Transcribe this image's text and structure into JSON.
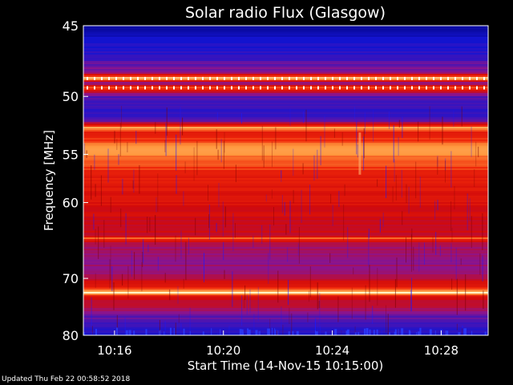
{
  "chart_data": {
    "type": "heatmap",
    "title": "Solar radio Flux (Glasgow)",
    "xlabel": "Start Time (14-Nov-15 10:15:00)",
    "ylabel": "Frequency [MHz]",
    "x_ticks": [
      "10:16",
      "10:20",
      "10:24",
      "10:28"
    ],
    "y_ticks": [
      45,
      50,
      55,
      60,
      70,
      80
    ],
    "y_axis_scale": "reciprocal",
    "ylim": [
      45,
      80
    ],
    "colormap": "blue-red-white",
    "intensity_profile": [
      {
        "freq_mhz": 45.0,
        "level": 0.1
      },
      {
        "freq_mhz": 46.0,
        "level": 0.25
      },
      {
        "freq_mhz": 47.0,
        "level": 0.3
      },
      {
        "freq_mhz": 48.2,
        "level": 0.45
      },
      {
        "freq_mhz": 48.6,
        "level": 1.0
      },
      {
        "freq_mhz": 49.0,
        "level": 0.4
      },
      {
        "freq_mhz": 49.3,
        "level": 0.85
      },
      {
        "freq_mhz": 50.0,
        "level": 0.35
      },
      {
        "freq_mhz": 51.0,
        "level": 0.3
      },
      {
        "freq_mhz": 52.0,
        "level": 0.35
      },
      {
        "freq_mhz": 52.6,
        "level": 0.95
      },
      {
        "freq_mhz": 53.0,
        "level": 0.7
      },
      {
        "freq_mhz": 54.0,
        "level": 0.85
      },
      {
        "freq_mhz": 55.0,
        "level": 0.9
      },
      {
        "freq_mhz": 56.0,
        "level": 0.82
      },
      {
        "freq_mhz": 57.0,
        "level": 0.72
      },
      {
        "freq_mhz": 58.0,
        "level": 0.7
      },
      {
        "freq_mhz": 60.0,
        "level": 0.66
      },
      {
        "freq_mhz": 62.0,
        "level": 0.62
      },
      {
        "freq_mhz": 64.0,
        "level": 0.6
      },
      {
        "freq_mhz": 64.3,
        "level": 0.85
      },
      {
        "freq_mhz": 65.0,
        "level": 0.55
      },
      {
        "freq_mhz": 67.0,
        "level": 0.45
      },
      {
        "freq_mhz": 69.0,
        "level": 0.5
      },
      {
        "freq_mhz": 70.0,
        "level": 0.55
      },
      {
        "freq_mhz": 71.5,
        "level": 0.75
      },
      {
        "freq_mhz": 72.3,
        "level": 1.0
      },
      {
        "freq_mhz": 73.0,
        "level": 0.6
      },
      {
        "freq_mhz": 74.5,
        "level": 0.55
      },
      {
        "freq_mhz": 76.0,
        "level": 0.4
      },
      {
        "freq_mhz": 78.0,
        "level": 0.3
      },
      {
        "freq_mhz": 80.0,
        "level": 0.25
      }
    ],
    "grid": false,
    "colors": {
      "background": "#000000",
      "low": "#0000a0",
      "mid": "#e00000",
      "high": "#ffffd0",
      "text": "#ffffff"
    }
  },
  "footer": {
    "updated": "Updated Thu Feb 22 00:58:52 2018"
  }
}
